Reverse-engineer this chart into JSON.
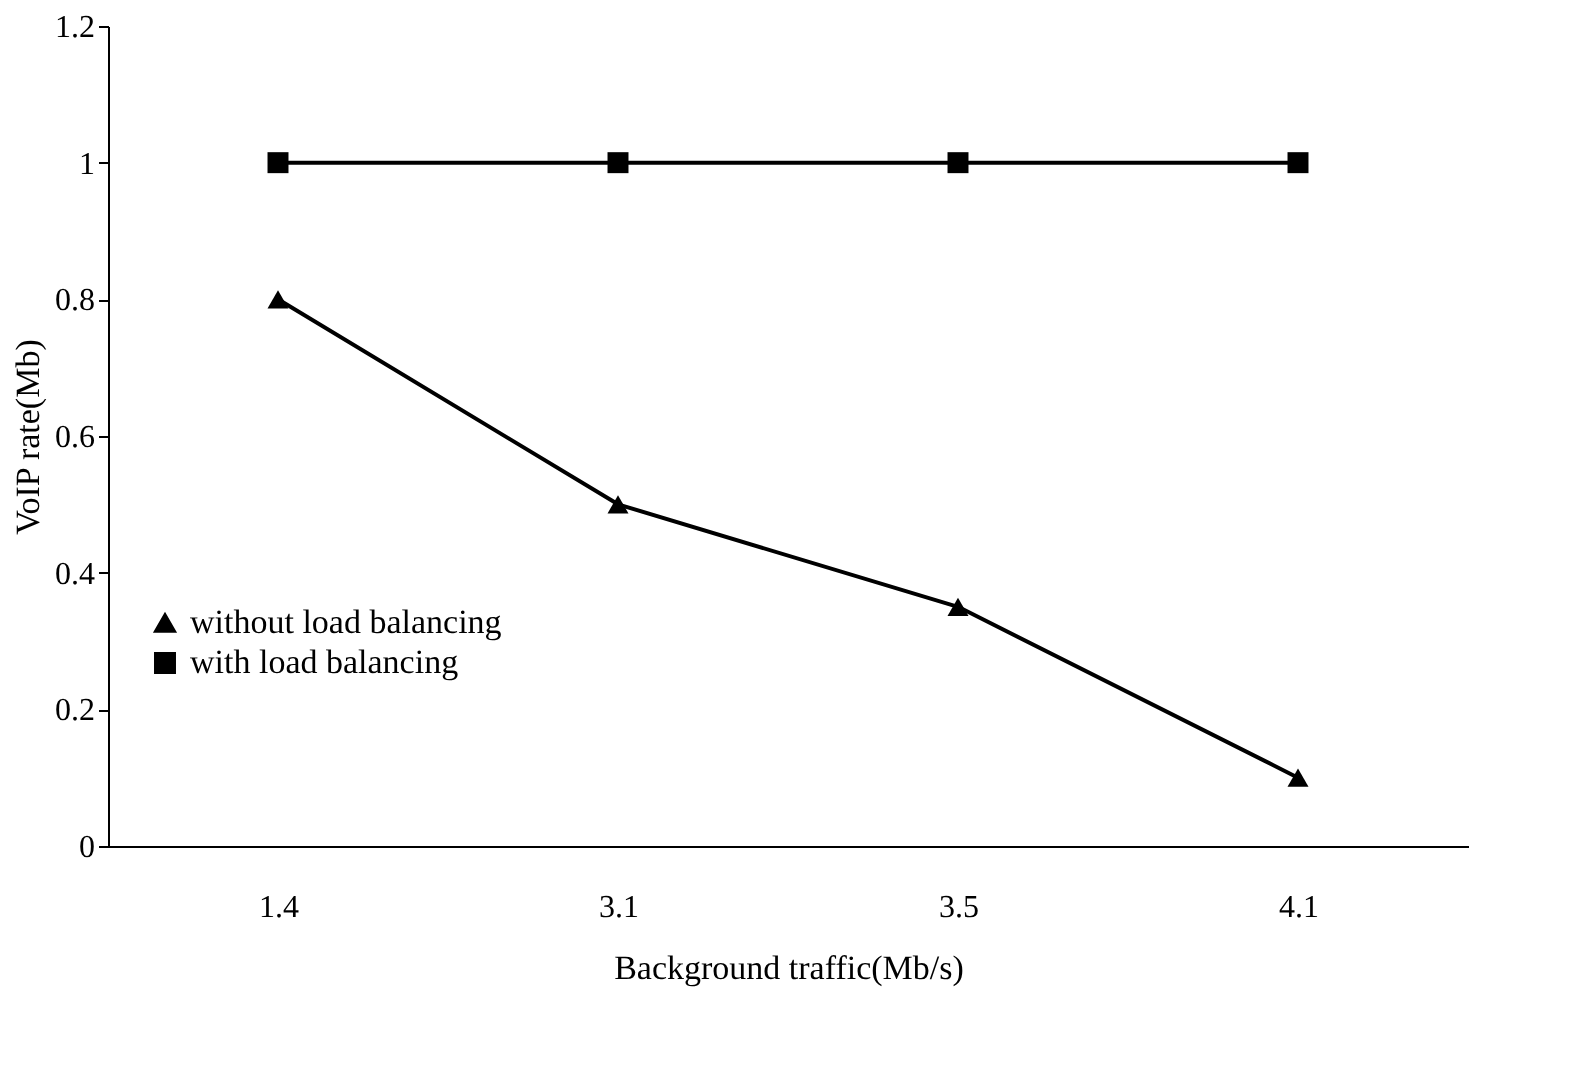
{
  "chart_data": {
    "type": "line",
    "xlabel": "Background traffic(Mb/s)",
    "ylabel": "VoIP rate(Mb)",
    "categories": [
      "1.4",
      "3.1",
      "3.5",
      "4.1"
    ],
    "series": [
      {
        "name": "without load balancing",
        "color": "#000000",
        "marker": "triangle",
        "values": [
          0.8,
          0.5,
          0.35,
          0.1
        ]
      },
      {
        "name": "with load balancing",
        "color": "#000000",
        "marker": "square",
        "values": [
          1,
          1,
          1,
          1
        ]
      }
    ],
    "ylim": [
      0,
      1.2
    ],
    "yticks": [
      0,
      0.2,
      0.4,
      0.6,
      0.8,
      1,
      1.2
    ],
    "legend": "left",
    "line_style": "solid"
  }
}
